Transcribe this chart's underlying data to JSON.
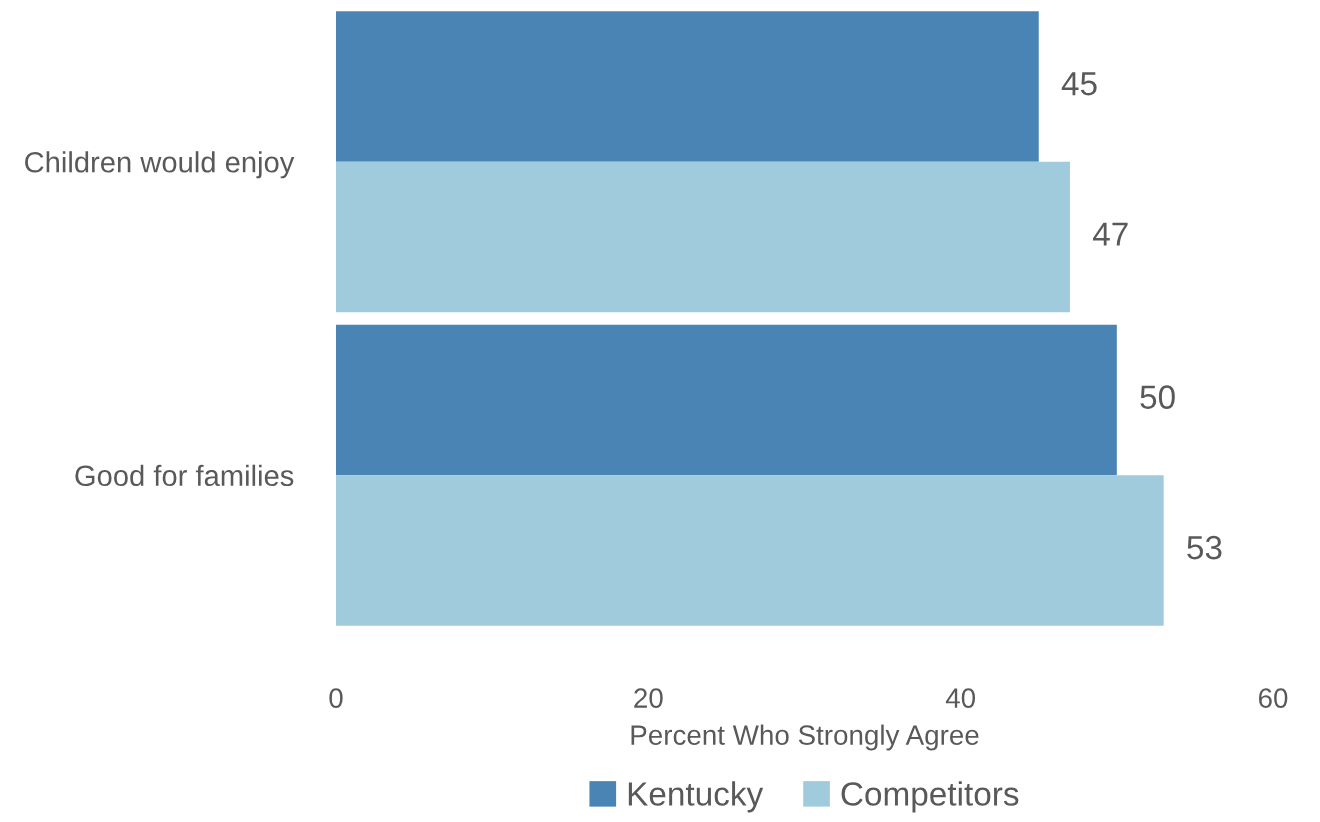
{
  "chart_data": {
    "type": "bar",
    "orientation": "horizontal",
    "categories": [
      "Children would enjoy",
      "Good for families"
    ],
    "series": [
      {
        "name": "Kentucky",
        "color": "#4a84b5",
        "values": [
          45,
          50
        ]
      },
      {
        "name": "Competitors",
        "color": "#9fcbdc",
        "values": [
          47,
          53
        ]
      }
    ],
    "xlabel": "Percent Who Strongly Agree",
    "xlim": [
      0,
      60
    ],
    "xticks": [
      0,
      20,
      40,
      60
    ],
    "data_labels": true,
    "grid": false,
    "legend": "bottom"
  }
}
